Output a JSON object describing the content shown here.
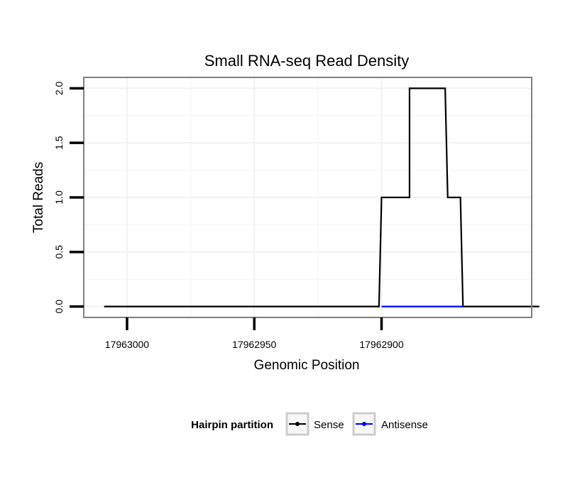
{
  "chart_data": {
    "type": "line",
    "title": "Small RNA-seq Read Density",
    "xlabel": "Genomic Position",
    "ylabel": "Total Reads",
    "x_reversed": true,
    "xlim": [
      17963017,
      17962841
    ],
    "ylim": [
      -0.1,
      2.1
    ],
    "xticks": [
      17963000,
      17962950,
      17962900
    ],
    "xtick_labels": [
      "17963000",
      "17962950",
      "17962900"
    ],
    "yticks": [
      0,
      0.5,
      1,
      1.5,
      2
    ],
    "ytick_labels": [
      "0.0",
      "0.5",
      "1.0",
      "1.5",
      "2.0"
    ],
    "grid": true,
    "legend_title": "Hairpin partition",
    "legend_position": "bottom",
    "series": [
      {
        "name": "Sense",
        "color": "#000000",
        "x": [
          17963009,
          17962901,
          17962900,
          17962889,
          17962889,
          17962875,
          17962874,
          17962869,
          17962868,
          17962838
        ],
        "y": [
          0,
          0,
          1,
          1,
          2,
          2,
          1,
          1,
          0,
          0
        ]
      },
      {
        "name": "Antisense",
        "color": "#0000ff",
        "x": [
          17962900,
          17962868
        ],
        "y": [
          0,
          0
        ]
      }
    ]
  }
}
